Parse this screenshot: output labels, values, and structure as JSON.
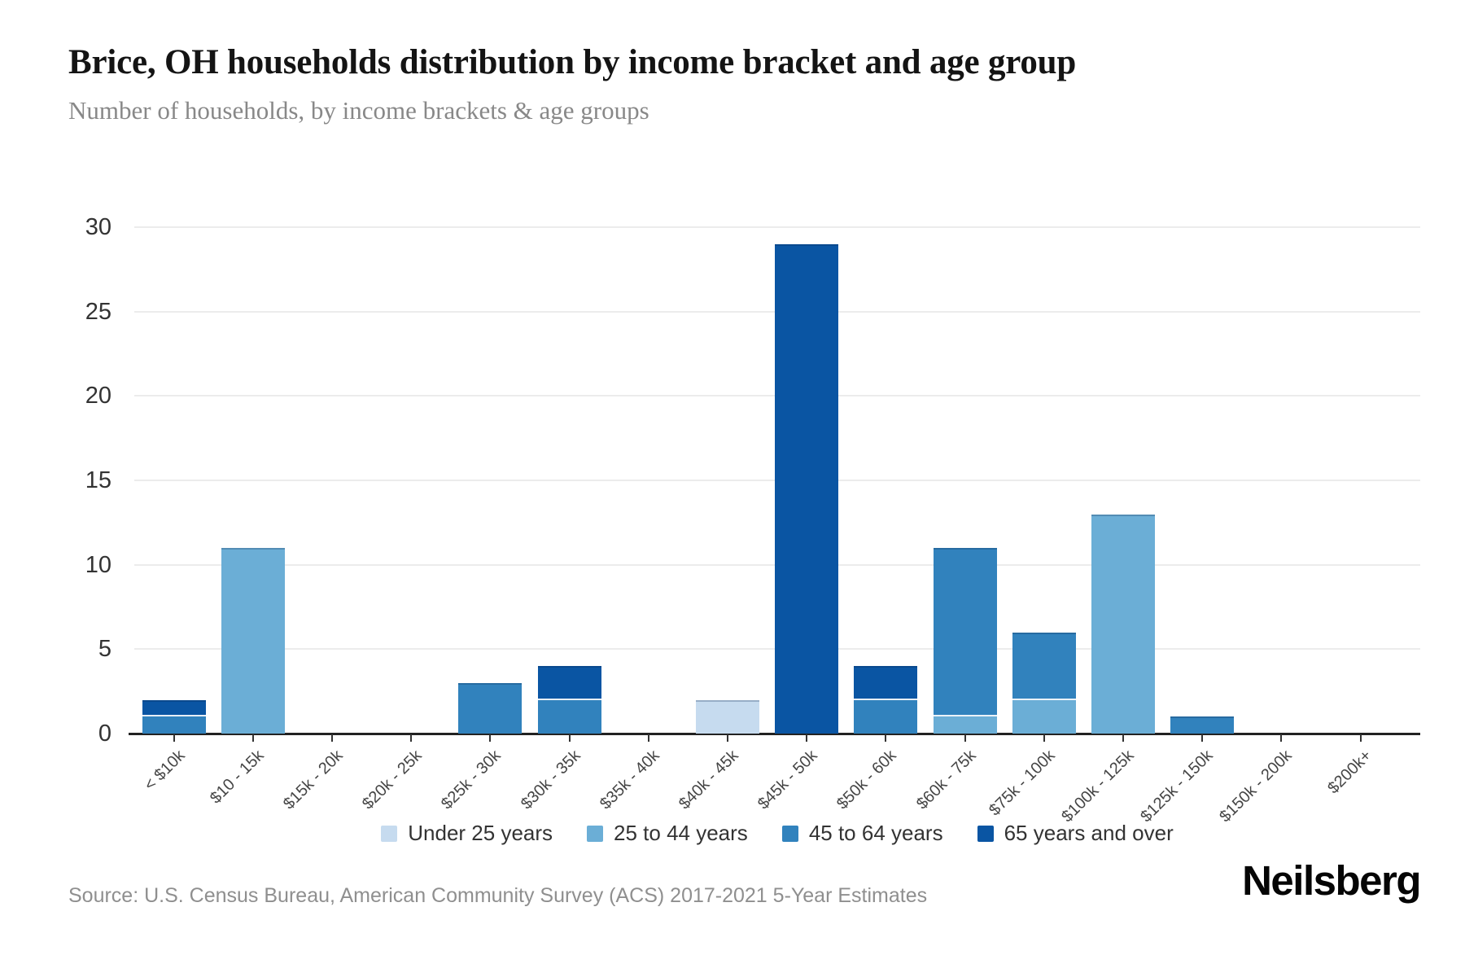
{
  "header": {
    "title": "Brice, OH households distribution by income bracket and age group",
    "subtitle": "Number of households, by income brackets & age groups"
  },
  "source": {
    "label": "Source: U.S. Census Bureau, American Community Survey (ACS) 2017-2021 5-Year Estimates"
  },
  "branding": {
    "logo_text": "Neilsberg"
  },
  "chart_data": {
    "type": "bar",
    "stacked": true,
    "title": "Brice, OH households distribution by income bracket and age group",
    "subtitle": "Number of households, by income brackets & age groups",
    "xlabel": "",
    "ylabel": "",
    "ylim": [
      0,
      30
    ],
    "yticks": [
      0,
      5,
      10,
      15,
      20,
      25,
      30
    ],
    "grid": true,
    "legend_position": "bottom",
    "categories": [
      "< $10k",
      "$10 - 15k",
      "$15k - 20k",
      "$20k - 25k",
      "$25k - 30k",
      "$30k - 35k",
      "$35k - 40k",
      "$40k - 45k",
      "$45k - 50k",
      "$50k - 60k",
      "$60k - 75k",
      "$75k - 100k",
      "$100k - 125k",
      "$125k - 150k",
      "$150k - 200k",
      "$200k+"
    ],
    "series": [
      {
        "name": "Under 25 years",
        "color": "#c6dbef",
        "values": [
          0,
          0,
          0,
          0,
          0,
          0,
          0,
          2,
          0,
          0,
          0,
          0,
          0,
          0,
          0,
          0
        ]
      },
      {
        "name": "25 to 44 years",
        "color": "#6baed6",
        "values": [
          0,
          11,
          0,
          0,
          0,
          0,
          0,
          0,
          0,
          0,
          1,
          2,
          13,
          0,
          0,
          0
        ]
      },
      {
        "name": "45 to 64 years",
        "color": "#3182bd",
        "values": [
          1,
          0,
          0,
          0,
          3,
          2,
          0,
          0,
          0,
          2,
          10,
          4,
          0,
          1,
          0,
          0
        ]
      },
      {
        "name": "65 years and over",
        "color": "#0a55a3",
        "values": [
          1,
          0,
          0,
          0,
          0,
          2,
          0,
          0,
          29,
          2,
          0,
          0,
          0,
          0,
          0,
          0
        ]
      }
    ]
  }
}
